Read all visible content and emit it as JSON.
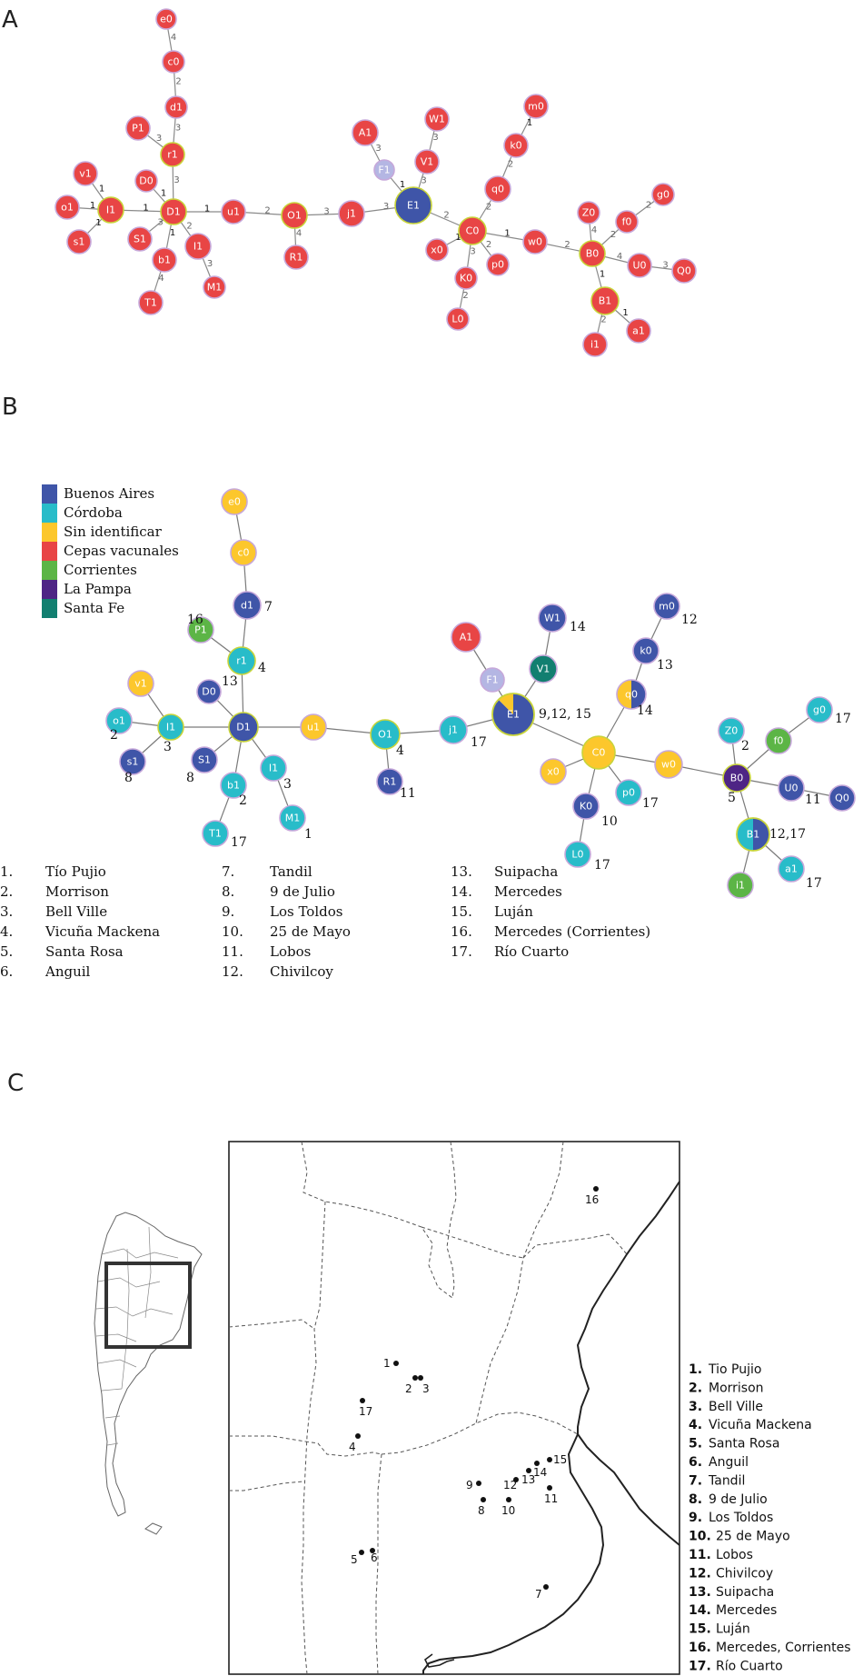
{
  "panels": {
    "a": "A",
    "b": "B",
    "c": "C"
  },
  "colors": {
    "red": "#e84545",
    "blue": "#3f55a8",
    "cyan": "#28bcc9",
    "yellow": "#fcc72c",
    "green": "#5cb546",
    "purple": "#4e2585",
    "teal": "#127f70",
    "lavender": "#b4b6e3",
    "node_stroke_pink": "#c6a8da",
    "node_stroke_yellow": "#c8d43a"
  },
  "legend": [
    {
      "label": "Buenos Aires",
      "color": "#3f55a8"
    },
    {
      "label": "Córdoba",
      "color": "#28bcc9"
    },
    {
      "label": "Sin identificar",
      "color": "#fcc72c"
    },
    {
      "label": "Cepas vacunales",
      "color": "#e84545"
    },
    {
      "label": "Corrientes",
      "color": "#5cb546"
    },
    {
      "label": "La Pampa",
      "color": "#4e2585"
    },
    {
      "label": "Santa Fe",
      "color": "#127f70"
    }
  ],
  "locations_b": [
    {
      "num": "1.",
      "name": "Tío Pujio"
    },
    {
      "num": "2.",
      "name": "Morrison"
    },
    {
      "num": "3.",
      "name": "Bell Ville"
    },
    {
      "num": "4.",
      "name": "Vicuña Mackena"
    },
    {
      "num": "5.",
      "name": "Santa Rosa"
    },
    {
      "num": "6.",
      "name": "Anguil"
    },
    {
      "num": "7.",
      "name": "Tandil"
    },
    {
      "num": "8.",
      "name": "9 de Julio"
    },
    {
      "num": "9.",
      "name": "Los Toldos"
    },
    {
      "num": "10.",
      "name": "25 de Mayo"
    },
    {
      "num": "11.",
      "name": "Lobos"
    },
    {
      "num": "12.",
      "name": "Chivilcoy"
    },
    {
      "num": "13.",
      "name": "Suipacha"
    },
    {
      "num": "14.",
      "name": "Mercedes"
    },
    {
      "num": "15.",
      "name": "Luján"
    },
    {
      "num": "16.",
      "name": "Mercedes (Corrientes)"
    },
    {
      "num": "17.",
      "name": "Río Cuarto"
    }
  ],
  "locations_c": [
    {
      "num": "1.",
      "name": "Tio Pujio"
    },
    {
      "num": "2.",
      "name": "Morrison"
    },
    {
      "num": "3.",
      "name": "Bell Ville"
    },
    {
      "num": "4.",
      "name": "Vicuña Mackena"
    },
    {
      "num": "5.",
      "name": "Santa Rosa"
    },
    {
      "num": "6.",
      "name": "Anguil"
    },
    {
      "num": "7.",
      "name": "Tandil"
    },
    {
      "num": "8.",
      "name": "9 de Julio"
    },
    {
      "num": "9.",
      "name": "Los Toldos"
    },
    {
      "num": "10.",
      "name": "25 de Mayo"
    },
    {
      "num": "11.",
      "name": "Lobos"
    },
    {
      "num": "12.",
      "name": "Chivilcoy"
    },
    {
      "num": "13.",
      "name": "Suipacha"
    },
    {
      "num": "14.",
      "name": "Mercedes"
    },
    {
      "num": "15.",
      "name": "Luján"
    },
    {
      "num": "16.",
      "name": "Mercedes, Corrientes"
    },
    {
      "num": "17.",
      "name": "Río Cuarto"
    }
  ],
  "network_a": {
    "nodes": [
      {
        "id": "e0"
      },
      {
        "id": "c0"
      },
      {
        "id": "d1"
      },
      {
        "id": "P1"
      },
      {
        "id": "r1"
      },
      {
        "id": "D0"
      },
      {
        "id": "v1"
      },
      {
        "id": "o1"
      },
      {
        "id": "I1"
      },
      {
        "id": "s1"
      },
      {
        "id": "D1"
      },
      {
        "id": "S1"
      },
      {
        "id": "b1"
      },
      {
        "id": "T1"
      },
      {
        "id": "I1b",
        "label": "I1"
      },
      {
        "id": "M1"
      },
      {
        "id": "u1"
      },
      {
        "id": "O1"
      },
      {
        "id": "R1"
      },
      {
        "id": "j1"
      },
      {
        "id": "A1"
      },
      {
        "id": "F1"
      },
      {
        "id": "E1"
      },
      {
        "id": "W1"
      },
      {
        "id": "V1"
      },
      {
        "id": "m0"
      },
      {
        "id": "k0"
      },
      {
        "id": "q0"
      },
      {
        "id": "C0"
      },
      {
        "id": "x0"
      },
      {
        "id": "K0"
      },
      {
        "id": "p0"
      },
      {
        "id": "L0"
      },
      {
        "id": "w0"
      },
      {
        "id": "Z0"
      },
      {
        "id": "g0"
      },
      {
        "id": "f0"
      },
      {
        "id": "B0"
      },
      {
        "id": "U0"
      },
      {
        "id": "Q0"
      },
      {
        "id": "B1"
      },
      {
        "id": "a1"
      },
      {
        "id": "i1"
      }
    ],
    "edges": [
      {
        "a": "e0",
        "b": "c0",
        "w": "4"
      },
      {
        "a": "c0",
        "b": "d1",
        "w": "2"
      },
      {
        "a": "d1",
        "b": "r1",
        "w": "3"
      },
      {
        "a": "P1",
        "b": "r1",
        "w": "3"
      },
      {
        "a": "r1",
        "b": "D1",
        "w": "3"
      },
      {
        "a": "D0",
        "b": "D1",
        "w": "1"
      },
      {
        "a": "v1",
        "b": "I1",
        "w": "1"
      },
      {
        "a": "o1",
        "b": "I1",
        "w": "1"
      },
      {
        "a": "s1",
        "b": "I1",
        "w": "1"
      },
      {
        "a": "I1",
        "b": "D1",
        "w": "1"
      },
      {
        "a": "S1",
        "b": "D1",
        "w": "3"
      },
      {
        "a": "b1",
        "b": "D1",
        "w": "1"
      },
      {
        "a": "b1",
        "b": "T1",
        "w": "4"
      },
      {
        "a": "I1b",
        "b": "D1",
        "w": "2"
      },
      {
        "a": "I1b",
        "b": "M1",
        "w": "3"
      },
      {
        "a": "D1",
        "b": "u1",
        "w": "1"
      },
      {
        "a": "u1",
        "b": "O1",
        "w": "2"
      },
      {
        "a": "O1",
        "b": "R1",
        "w": "4"
      },
      {
        "a": "O1",
        "b": "j1",
        "w": "3"
      },
      {
        "a": "j1",
        "b": "E1",
        "w": "3"
      },
      {
        "a": "A1",
        "b": "F1",
        "w": "3"
      },
      {
        "a": "F1",
        "b": "E1",
        "w": "1"
      },
      {
        "a": "W1",
        "b": "V1",
        "w": "3"
      },
      {
        "a": "V1",
        "b": "E1",
        "w": "3"
      },
      {
        "a": "E1",
        "b": "C0",
        "w": "2"
      },
      {
        "a": "m0",
        "b": "k0",
        "w": "1"
      },
      {
        "a": "k0",
        "b": "q0",
        "w": "2"
      },
      {
        "a": "q0",
        "b": "C0",
        "w": "2"
      },
      {
        "a": "x0",
        "b": "C0",
        "w": "1"
      },
      {
        "a": "K0",
        "b": "C0",
        "w": "3"
      },
      {
        "a": "p0",
        "b": "C0",
        "w": "2"
      },
      {
        "a": "K0",
        "b": "L0",
        "w": "2"
      },
      {
        "a": "C0",
        "b": "w0",
        "w": "1"
      },
      {
        "a": "w0",
        "b": "B0",
        "w": "2"
      },
      {
        "a": "Z0",
        "b": "B0",
        "w": "4"
      },
      {
        "a": "g0",
        "b": "f0",
        "w": "2"
      },
      {
        "a": "f0",
        "b": "B0",
        "w": "2"
      },
      {
        "a": "B0",
        "b": "U0",
        "w": "4"
      },
      {
        "a": "U0",
        "b": "Q0",
        "w": "3"
      },
      {
        "a": "B0",
        "b": "B1",
        "w": "1"
      },
      {
        "a": "B1",
        "b": "a1",
        "w": "1"
      },
      {
        "a": "B1",
        "b": "i1",
        "w": "2"
      }
    ]
  },
  "network_b": {
    "nodes": [
      {
        "id": "e0",
        "label": "e0"
      },
      {
        "id": "c0",
        "label": "c0"
      },
      {
        "id": "d1",
        "label": "d1",
        "num": "7"
      },
      {
        "id": "P1",
        "label": "P1",
        "num": "16"
      },
      {
        "id": "r1",
        "label": "r1",
        "num": "4"
      },
      {
        "id": "D0",
        "label": "D0",
        "num": "13"
      },
      {
        "id": "v1",
        "label": "v1"
      },
      {
        "id": "o1",
        "label": "o1",
        "num": "2"
      },
      {
        "id": "I1",
        "label": "I1",
        "num": "3"
      },
      {
        "id": "s1",
        "label": "s1",
        "num": "8"
      },
      {
        "id": "D1",
        "label": "D1"
      },
      {
        "id": "S1",
        "label": "S1",
        "num": "8"
      },
      {
        "id": "b1",
        "label": "b1",
        "num": "2"
      },
      {
        "id": "T1",
        "label": "T1",
        "num": "17"
      },
      {
        "id": "I1b",
        "label": "I1",
        "num": "3"
      },
      {
        "id": "M1",
        "label": "M1",
        "num": "1"
      },
      {
        "id": "u1",
        "label": "u1"
      },
      {
        "id": "O1",
        "label": "O1",
        "num": "4"
      },
      {
        "id": "R1",
        "label": "R1",
        "num": "11"
      },
      {
        "id": "j1",
        "label": "j1",
        "num": "17"
      },
      {
        "id": "A1",
        "label": "A1"
      },
      {
        "id": "F1",
        "label": "F1"
      },
      {
        "id": "E1",
        "label": "E1",
        "num": "9,12, 15"
      },
      {
        "id": "W1",
        "label": "W1",
        "num": "14"
      },
      {
        "id": "V1",
        "label": "V1"
      },
      {
        "id": "m0",
        "label": "m0",
        "num": "12"
      },
      {
        "id": "k0",
        "label": "k0",
        "num": "13"
      },
      {
        "id": "q0",
        "label": "q0",
        "num": "14"
      },
      {
        "id": "C0",
        "label": "C0"
      },
      {
        "id": "x0",
        "label": "x0"
      },
      {
        "id": "K0",
        "label": "K0",
        "num": "10"
      },
      {
        "id": "p0",
        "label": "p0",
        "num": "17"
      },
      {
        "id": "L0",
        "label": "L0",
        "num": "17"
      },
      {
        "id": "w0",
        "label": "w0"
      },
      {
        "id": "Z0",
        "label": "Z0",
        "num": "2"
      },
      {
        "id": "g0",
        "label": "g0",
        "num": "17"
      },
      {
        "id": "f0",
        "label": "f0"
      },
      {
        "id": "B0",
        "label": "B0",
        "num": "5"
      },
      {
        "id": "U0",
        "label": "U0",
        "num": "11"
      },
      {
        "id": "Q0",
        "label": "Q0"
      },
      {
        "id": "B1",
        "label": "B1",
        "num": "12,17"
      },
      {
        "id": "a1",
        "label": "a1",
        "num": "17"
      },
      {
        "id": "i1",
        "label": "i1"
      }
    ]
  },
  "map": {
    "points": [
      {
        "num": "1"
      },
      {
        "num": "2"
      },
      {
        "num": "3"
      },
      {
        "num": "4"
      },
      {
        "num": "5"
      },
      {
        "num": "6"
      },
      {
        "num": "7"
      },
      {
        "num": "8"
      },
      {
        "num": "9"
      },
      {
        "num": "10"
      },
      {
        "num": "11"
      },
      {
        "num": "12"
      },
      {
        "num": "13"
      },
      {
        "num": "14"
      },
      {
        "num": "15"
      },
      {
        "num": "16"
      },
      {
        "num": "17"
      }
    ]
  }
}
